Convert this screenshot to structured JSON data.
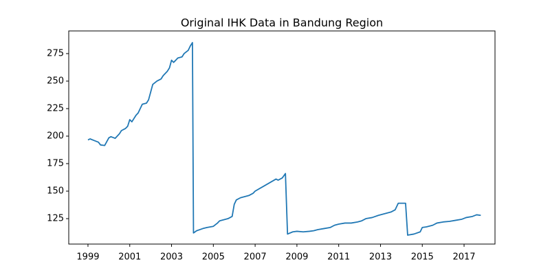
{
  "chart_data": {
    "type": "line",
    "title": "Original IHK Data in Bandung Region",
    "color": "#1f77b4",
    "x": [
      1999.0,
      1999.1,
      1999.3,
      1999.5,
      1999.6,
      1999.8,
      2000.0,
      2000.1,
      2000.3,
      2000.5,
      2000.6,
      2000.8,
      2000.9,
      2001.0,
      2001.1,
      2001.3,
      2001.4,
      2001.6,
      2001.8,
      2001.9,
      2002.0,
      2002.1,
      2002.3,
      2002.5,
      2002.6,
      2002.8,
      2002.9,
      2003.0,
      2003.1,
      2003.3,
      2003.5,
      2003.6,
      2003.8,
      2003.9,
      2004.0,
      2004.05,
      2004.2,
      2004.5,
      2004.7,
      2005.0,
      2005.2,
      2005.3,
      2005.5,
      2005.7,
      2005.9,
      2006.0,
      2006.1,
      2006.3,
      2006.5,
      2006.7,
      2006.9,
      2007.0,
      2008.0,
      2008.1,
      2008.3,
      2008.45,
      2008.55,
      2008.8,
      2009.0,
      2009.3,
      2009.6,
      2009.8,
      2010.0,
      2010.3,
      2010.6,
      2010.8,
      2011.0,
      2011.3,
      2011.6,
      2011.9,
      2012.1,
      2012.3,
      2012.6,
      2012.9,
      2013.1,
      2013.3,
      2013.5,
      2013.7,
      2013.85,
      2014.0,
      2014.2,
      2014.3,
      2014.6,
      2014.9,
      2015.0,
      2015.2,
      2015.5,
      2015.7,
      2016.0,
      2016.3,
      2016.6,
      2016.9,
      2017.1,
      2017.4,
      2017.6,
      2017.8
    ],
    "values": [
      196.5,
      197.5,
      196,
      194.5,
      192,
      191.5,
      198.5,
      199.5,
      198,
      202,
      205,
      207,
      209,
      215,
      213,
      219,
      221,
      229,
      230,
      233,
      240,
      247,
      250,
      252,
      255,
      259,
      262,
      269,
      267,
      271,
      272,
      275,
      278,
      282,
      285,
      112,
      114,
      116,
      117,
      118,
      121,
      123,
      124,
      125,
      127,
      138,
      142,
      144,
      145,
      146,
      148,
      150,
      161,
      160,
      162,
      166,
      111,
      113,
      113.5,
      113,
      113.5,
      114,
      115,
      116,
      117,
      119,
      120,
      121,
      121,
      122,
      123,
      125,
      126,
      128,
      129,
      130,
      131,
      133,
      139,
      139,
      139,
      110,
      111,
      113,
      117,
      117.5,
      119,
      121,
      122,
      122.5,
      123.5,
      124.5,
      126,
      127,
      128.5,
      128
    ],
    "xlim": [
      1998.08,
      2018.48
    ],
    "ylim": [
      101.9,
      295.6
    ],
    "xticks": [
      1999,
      2001,
      2003,
      2005,
      2007,
      2009,
      2011,
      2013,
      2015,
      2017
    ],
    "yticks": [
      125,
      150,
      175,
      200,
      225,
      250,
      275
    ]
  }
}
